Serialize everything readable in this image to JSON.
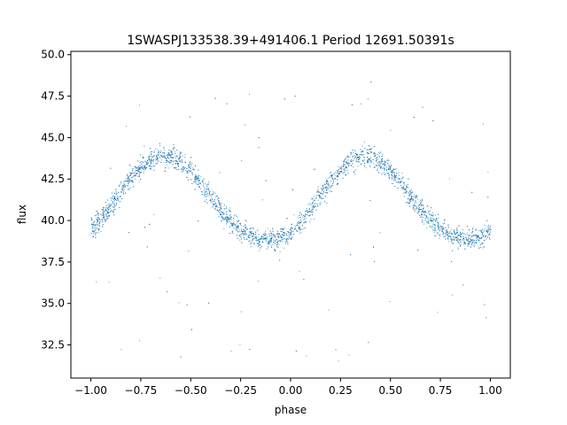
{
  "chart_data": {
    "type": "scatter",
    "title": "1SWASPJ133538.39+491406.1 Period 12691.50391s",
    "xlabel": "phase",
    "ylabel": "flux",
    "xlim": [
      -1.1,
      1.1
    ],
    "ylim": [
      30.5,
      50.2
    ],
    "xticks": [
      -1.0,
      -0.75,
      -0.5,
      -0.25,
      0.0,
      0.25,
      0.5,
      0.75,
      1.0
    ],
    "xtick_labels": [
      "−1.00",
      "−0.75",
      "−0.50",
      "−0.25",
      "0.00",
      "0.25",
      "0.50",
      "0.75",
      "1.00"
    ],
    "yticks": [
      32.5,
      35.0,
      37.5,
      40.0,
      42.5,
      45.0,
      47.5,
      50.0
    ],
    "ytick_labels": [
      "32.5",
      "35.0",
      "37.5",
      "40.0",
      "42.5",
      "45.0",
      "47.5",
      "50.0"
    ],
    "series": [
      {
        "color": "#1f77b4",
        "marker": "dot",
        "description_of_trend": "sinusoidal light curve repeated over two phase cycles",
        "x": [
          -1.0,
          -0.95,
          -0.9,
          -0.85,
          -0.8,
          -0.75,
          -0.7,
          -0.65,
          -0.6,
          -0.55,
          -0.5,
          -0.45,
          -0.4,
          -0.35,
          -0.3,
          -0.25,
          -0.2,
          -0.15,
          -0.1,
          -0.05,
          0.0,
          0.05,
          0.1,
          0.15,
          0.2,
          0.25,
          0.3,
          0.35,
          0.4,
          0.45,
          0.5,
          0.55,
          0.6,
          0.65,
          0.7,
          0.75,
          0.8,
          0.85,
          0.9,
          0.95,
          1.0
        ],
        "y": [
          39.6,
          40.1,
          40.9,
          41.8,
          42.6,
          43.2,
          43.7,
          43.9,
          43.9,
          43.6,
          43.0,
          42.2,
          41.4,
          40.6,
          39.9,
          39.4,
          39.1,
          38.9,
          38.9,
          39.0,
          39.3,
          39.9,
          40.7,
          41.6,
          42.4,
          43.1,
          43.6,
          43.9,
          43.9,
          43.6,
          43.0,
          42.3,
          41.5,
          40.7,
          40.0,
          39.5,
          39.2,
          39.0,
          38.9,
          39.0,
          39.4
        ]
      }
    ]
  }
}
